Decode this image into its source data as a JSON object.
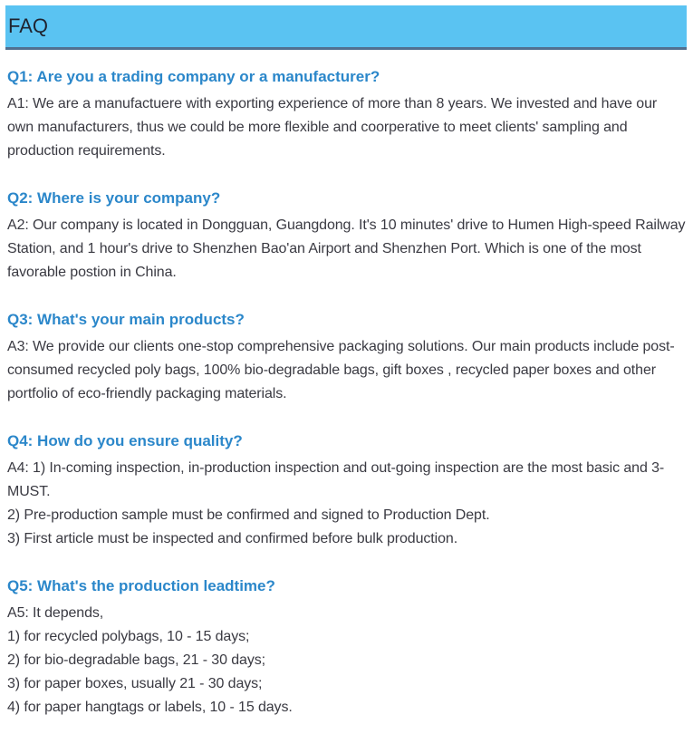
{
  "page": {
    "header": {
      "title": "FAQ"
    },
    "colors": {
      "header_bg": "#5ac3f2",
      "header_border": "#517090",
      "header_text": "#1f2430",
      "question": "#2b87ca",
      "body_text": "#3a3a42"
    },
    "faqs": [
      {
        "question": "Q1: Are you a trading company or a manufacturer?",
        "answer_lines": [
          "A1: We are a manufactuere with exporting experience of more than 8 years. We invested and have our own manufacturers, thus we could be more flexible and coorperative to meet clients' sampling and production requirements."
        ]
      },
      {
        "question": "Q2: Where is your company?",
        "answer_lines": [
          "A2: Our company is located in Dongguan, Guangdong. It's 10 minutes' drive to Humen High-speed Railway Station, and 1 hour's drive to Shenzhen Bao'an Airport and Shenzhen Port. Which is one of the most favorable postion in China."
        ]
      },
      {
        "question": "Q3: What's your main products?",
        "answer_lines": [
          "A3: We provide our clients one-stop comprehensive packaging solutions. Our main products include post-consumed recycled poly bags, 100% bio-degradable bags, gift boxes , recycled paper boxes and other portfolio of eco-friendly packaging materials."
        ]
      },
      {
        "question": "Q4: How do you ensure quality?",
        "answer_lines": [
          "A4: 1) In-coming inspection, in-production inspection and out-going inspection are the most basic and 3-MUST.",
          "2) Pre-production sample must be confirmed and signed to Production Dept.",
          "3) First article must be inspected and confirmed before bulk production."
        ]
      },
      {
        "question": "Q5: What's the production leadtime?",
        "answer_lines": [
          "A5: It depends,",
          "1) for recycled polybags, 10 - 15 days;",
          "2) for bio-degradable bags, 21 - 30 days;",
          "3) for paper boxes, usually 21 - 30 days;",
          "4) for paper hangtags or labels, 10 - 15 days."
        ]
      }
    ]
  }
}
